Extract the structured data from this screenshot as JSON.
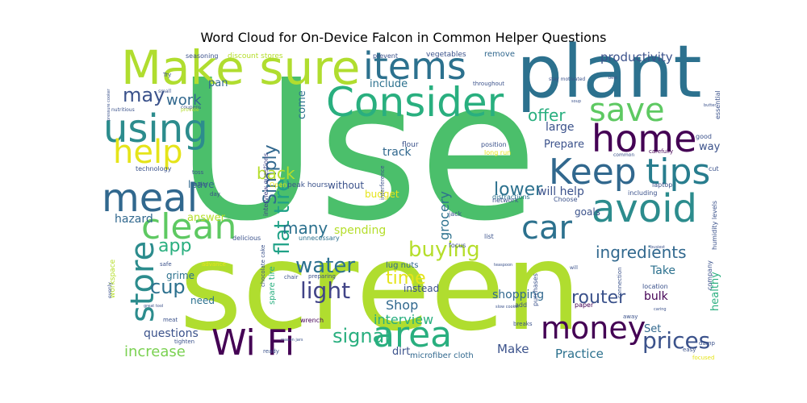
{
  "chart_data": {
    "type": "wordcloud",
    "title": "Word Cloud for On-Device Falcon in Common Helper Questions",
    "words": [
      {
        "text": "Use",
        "weight": 100,
        "color": "#4bbf6b"
      },
      {
        "text": "screen",
        "weight": 90,
        "color": "#b0dd2f"
      },
      {
        "text": "plant",
        "weight": 60,
        "color": "#2c718e"
      },
      {
        "text": "Make sure",
        "weight": 52,
        "color": "#b0dd2f"
      },
      {
        "text": "Consider",
        "weight": 42,
        "color": "#29af7f"
      },
      {
        "text": "items",
        "weight": 42,
        "color": "#2c718e"
      },
      {
        "text": "using",
        "weight": 44,
        "color": "#2c8c8d"
      },
      {
        "text": "home",
        "weight": 38,
        "color": "#440154"
      },
      {
        "text": "save",
        "weight": 32,
        "color": "#5ec962"
      },
      {
        "text": "help",
        "weight": 34,
        "color": "#e5e419"
      },
      {
        "text": "Keep",
        "weight": 40,
        "color": "#31688e"
      },
      {
        "text": "tips",
        "weight": 40,
        "color": "#287d8e"
      },
      {
        "text": "meal",
        "weight": 42,
        "color": "#31688e"
      },
      {
        "text": "avoid",
        "weight": 42,
        "color": "#2c8c8d"
      },
      {
        "text": "clean",
        "weight": 36,
        "color": "#5ec962"
      },
      {
        "text": "store",
        "weight": 34,
        "color": "#2c8c8d"
      },
      {
        "text": "car",
        "weight": 32,
        "color": "#2c718e"
      },
      {
        "text": "Wi Fi",
        "weight": 38,
        "color": "#440154"
      },
      {
        "text": "area",
        "weight": 38,
        "color": "#29af7f"
      },
      {
        "text": "money",
        "weight": 34,
        "color": "#440154"
      },
      {
        "text": "prices",
        "weight": 28,
        "color": "#3b528b"
      },
      {
        "text": "buying",
        "weight": 24,
        "color": "#b5de2b"
      },
      {
        "text": "ingredients",
        "weight": 20,
        "color": "#31688e"
      },
      {
        "text": "water",
        "weight": 22,
        "color": "#2c718e"
      },
      {
        "text": "light",
        "weight": 24,
        "color": "#414487"
      },
      {
        "text": "flat tire",
        "weight": 22,
        "color": "#1fa187"
      },
      {
        "text": "Simply",
        "weight": 20,
        "color": "#31688e"
      },
      {
        "text": "signal",
        "weight": 22,
        "color": "#29af7f"
      },
      {
        "text": "router",
        "weight": 18,
        "color": "#3b528b"
      },
      {
        "text": "time",
        "weight": 18,
        "color": "#e5e419"
      },
      {
        "text": "lower",
        "weight": 18,
        "color": "#2c718e"
      },
      {
        "text": "may",
        "weight": 22,
        "color": "#3b528b"
      },
      {
        "text": "app",
        "weight": 20,
        "color": "#29af7f"
      },
      {
        "text": "cup",
        "weight": 20,
        "color": "#2c718e"
      },
      {
        "text": "offer",
        "weight": 18,
        "color": "#29af7f"
      },
      {
        "text": "back",
        "weight": 18,
        "color": "#b5de2b"
      },
      {
        "text": "work",
        "weight": 16,
        "color": "#31688e"
      },
      {
        "text": "many",
        "weight": 18,
        "color": "#2c718e"
      },
      {
        "text": "increase",
        "weight": 16,
        "color": "#7ad151"
      },
      {
        "text": "interview",
        "weight": 15,
        "color": "#29af7f"
      },
      {
        "text": "productivity",
        "weight": 15,
        "color": "#3b528b"
      },
      {
        "text": "grocery",
        "weight": 14,
        "color": "#2c718e"
      },
      {
        "text": "Shop",
        "weight": 14,
        "color": "#31688e"
      },
      {
        "text": "Make",
        "weight": 13,
        "color": "#3b528b"
      },
      {
        "text": "Practice",
        "weight": 13,
        "color": "#2c718e"
      },
      {
        "text": "questions",
        "weight": 13,
        "color": "#3b528b"
      },
      {
        "text": "hazard",
        "weight": 13,
        "color": "#31688e"
      },
      {
        "text": "spending",
        "weight": 13,
        "color": "#b5de2b"
      },
      {
        "text": "shopping",
        "weight": 13,
        "color": "#31688e"
      },
      {
        "text": "track",
        "weight": 12,
        "color": "#31688e"
      },
      {
        "text": "large",
        "weight": 12,
        "color": "#3b528b"
      },
      {
        "text": "Prepare",
        "weight": 12,
        "color": "#3b528b"
      },
      {
        "text": "will help",
        "weight": 12,
        "color": "#3b528b"
      },
      {
        "text": "Take",
        "weight": 12,
        "color": "#2c718e"
      },
      {
        "text": "bulk",
        "weight": 12,
        "color": "#440154"
      },
      {
        "text": "Set",
        "weight": 11,
        "color": "#31688e"
      },
      {
        "text": "healthy",
        "weight": 11,
        "color": "#29af7f"
      },
      {
        "text": "way",
        "weight": 11,
        "color": "#3b528b"
      },
      {
        "text": "goals",
        "weight": 11,
        "color": "#3b528b"
      },
      {
        "text": "budget",
        "weight": 11,
        "color": "#e5e419"
      },
      {
        "text": "without",
        "weight": 11,
        "color": "#3b528b"
      },
      {
        "text": "include",
        "weight": 11,
        "color": "#2c718e"
      },
      {
        "text": "come",
        "weight": 11,
        "color": "#2c718e"
      },
      {
        "text": "pan",
        "weight": 11,
        "color": "#31688e"
      },
      {
        "text": "dirt",
        "weight": 11,
        "color": "#3b528b"
      },
      {
        "text": "grime",
        "weight": 11,
        "color": "#2c718e"
      },
      {
        "text": "need",
        "weight": 11,
        "color": "#2c718e"
      },
      {
        "text": "answer",
        "weight": 11,
        "color": "#b5de2b"
      },
      {
        "text": "leave",
        "weight": 11,
        "color": "#31688e"
      },
      {
        "text": "instead",
        "weight": 11,
        "color": "#3b528b"
      },
      {
        "text": "lug nuts",
        "weight": 9,
        "color": "#31688e"
      },
      {
        "text": "microfiber cloth",
        "weight": 9,
        "color": "#31688e"
      },
      {
        "text": "remove",
        "weight": 9,
        "color": "#31688e"
      },
      {
        "text": "discount stores",
        "weight": 8,
        "color": "#b5de2b"
      },
      {
        "text": "vegetables",
        "weight": 8,
        "color": "#3b528b"
      },
      {
        "text": "prevent",
        "weight": 7,
        "color": "#3b528b"
      },
      {
        "text": "seasoning",
        "weight": 7,
        "color": "#3b528b"
      },
      {
        "text": "peak hours",
        "weight": 8,
        "color": "#3b528b"
      },
      {
        "text": "spare tire",
        "weight": 8,
        "color": "#29af7f"
      },
      {
        "text": "interview questions",
        "weight": 7,
        "color": "#414487"
      },
      {
        "text": "unnecessary",
        "weight": 7,
        "color": "#2c718e"
      },
      {
        "text": "delicious",
        "weight": 7,
        "color": "#3b528b"
      },
      {
        "text": "Open",
        "weight": 6,
        "color": "#e5e419"
      },
      {
        "text": "Choose",
        "weight": 7,
        "color": "#3b528b"
      },
      {
        "text": "distractions",
        "weight": 7,
        "color": "#2c718e"
      },
      {
        "text": "network",
        "weight": 6,
        "color": "#3b528b"
      },
      {
        "text": "position",
        "weight": 7,
        "color": "#3b528b"
      },
      {
        "text": "long run",
        "weight": 7,
        "color": "#e5e419"
      },
      {
        "text": "flour",
        "weight": 7,
        "color": "#3b528b"
      },
      {
        "text": "jack",
        "weight": 6,
        "color": "#3b528b"
      },
      {
        "text": "focus",
        "weight": 7,
        "color": "#3b528b"
      },
      {
        "text": "list",
        "weight": 6,
        "color": "#3b528b"
      },
      {
        "text": "purchases",
        "weight": 6,
        "color": "#3b528b"
      },
      {
        "text": "add",
        "weight": 6,
        "color": "#3b528b"
      },
      {
        "text": "paper",
        "weight": 7,
        "color": "#440154"
      },
      {
        "text": "location",
        "weight": 7,
        "color": "#3b528b"
      },
      {
        "text": "company",
        "weight": 6,
        "color": "#3b528b"
      },
      {
        "text": "humidity levels",
        "weight": 7,
        "color": "#3b528b"
      },
      {
        "text": "laptop",
        "weight": 7,
        "color": "#3b528b"
      },
      {
        "text": "including",
        "weight": 7,
        "color": "#3b528b"
      },
      {
        "text": "carefully",
        "weight": 6,
        "color": "#440154"
      },
      {
        "text": "good",
        "weight": 6,
        "color": "#3b528b"
      },
      {
        "text": "cut",
        "weight": 6,
        "color": "#3b528b"
      },
      {
        "text": "essential",
        "weight": 6,
        "color": "#3b528b"
      },
      {
        "text": "technology",
        "weight": 6,
        "color": "#3b528b"
      },
      {
        "text": "toss",
        "weight": 6,
        "color": "#3b528b"
      },
      {
        "text": "bake",
        "weight": 6,
        "color": "#3b528b"
      },
      {
        "text": "day",
        "weight": 6,
        "color": "#3b528b"
      },
      {
        "text": "workspace",
        "weight": 7,
        "color": "#b5de2b"
      },
      {
        "text": "safe",
        "weight": 6,
        "color": "#3b528b"
      },
      {
        "text": "advance",
        "weight": 6,
        "color": "#e5e419"
      },
      {
        "text": "chocolate cake",
        "weight": 6,
        "color": "#3b528b"
      },
      {
        "text": "preparing",
        "weight": 6,
        "color": "#3b528b"
      },
      {
        "text": "chair",
        "weight": 6,
        "color": "#3b528b"
      },
      {
        "text": "wrench",
        "weight": 7,
        "color": "#440154"
      },
      {
        "text": "breaks",
        "weight": 6,
        "color": "#3b528b"
      },
      {
        "text": "tighten",
        "weight": 6,
        "color": "#3b528b"
      },
      {
        "text": "meat",
        "weight": 6,
        "color": "#3b528b"
      },
      {
        "text": "ready",
        "weight": 6,
        "color": "#3b528b"
      },
      {
        "text": "focused",
        "weight": 6,
        "color": "#e5e419"
      },
      {
        "text": "easy",
        "weight": 6,
        "color": "#3b528b"
      },
      {
        "text": "damp",
        "weight": 6,
        "color": "#3b528b"
      },
      {
        "text": "connection",
        "weight": 6,
        "color": "#3b528b"
      },
      {
        "text": "away",
        "weight": 6,
        "color": "#3b528b"
      },
      {
        "text": "throughout",
        "weight": 6,
        "color": "#3b528b"
      },
      {
        "text": "interference",
        "weight": 6,
        "color": "#3b528b"
      },
      {
        "text": "stay motivated",
        "weight": 5,
        "color": "#3b528b"
      },
      {
        "text": "common",
        "weight": 5,
        "color": "#3b528b"
      },
      {
        "text": "coupons",
        "weight": 5,
        "color": "#3b528b"
      },
      {
        "text": "small",
        "weight": 5,
        "color": "#3b528b"
      },
      {
        "text": "nutritious",
        "weight": 5,
        "color": "#3b528b"
      },
      {
        "text": "provide",
        "weight": 5,
        "color": "#b5de2b"
      },
      {
        "text": "Try",
        "weight": 5,
        "color": "#3b528b"
      },
      {
        "text": "evenly",
        "weight": 5,
        "color": "#3b528b"
      },
      {
        "text": "pressure cooker",
        "weight": 4,
        "color": "#3b528b"
      },
      {
        "text": "great tool",
        "weight": 4,
        "color": "#3b528b"
      },
      {
        "text": "teaspoon",
        "weight": 4,
        "color": "#3b528b"
      },
      {
        "text": "slow cooker",
        "weight": 4,
        "color": "#3b528b"
      },
      {
        "text": "mason jars",
        "weight": 4,
        "color": "#3b528b"
      },
      {
        "text": "busiest",
        "weight": 4,
        "color": "#3b528b"
      },
      {
        "text": "soup",
        "weight": 4,
        "color": "#3b528b"
      },
      {
        "text": "best",
        "weight": 4,
        "color": "#3b528b"
      },
      {
        "text": "butter",
        "weight": 4,
        "color": "#3b528b"
      },
      {
        "text": "will",
        "weight": 4,
        "color": "#3b528b"
      },
      {
        "text": "caring",
        "weight": 4,
        "color": "#3b528b"
      }
    ]
  }
}
